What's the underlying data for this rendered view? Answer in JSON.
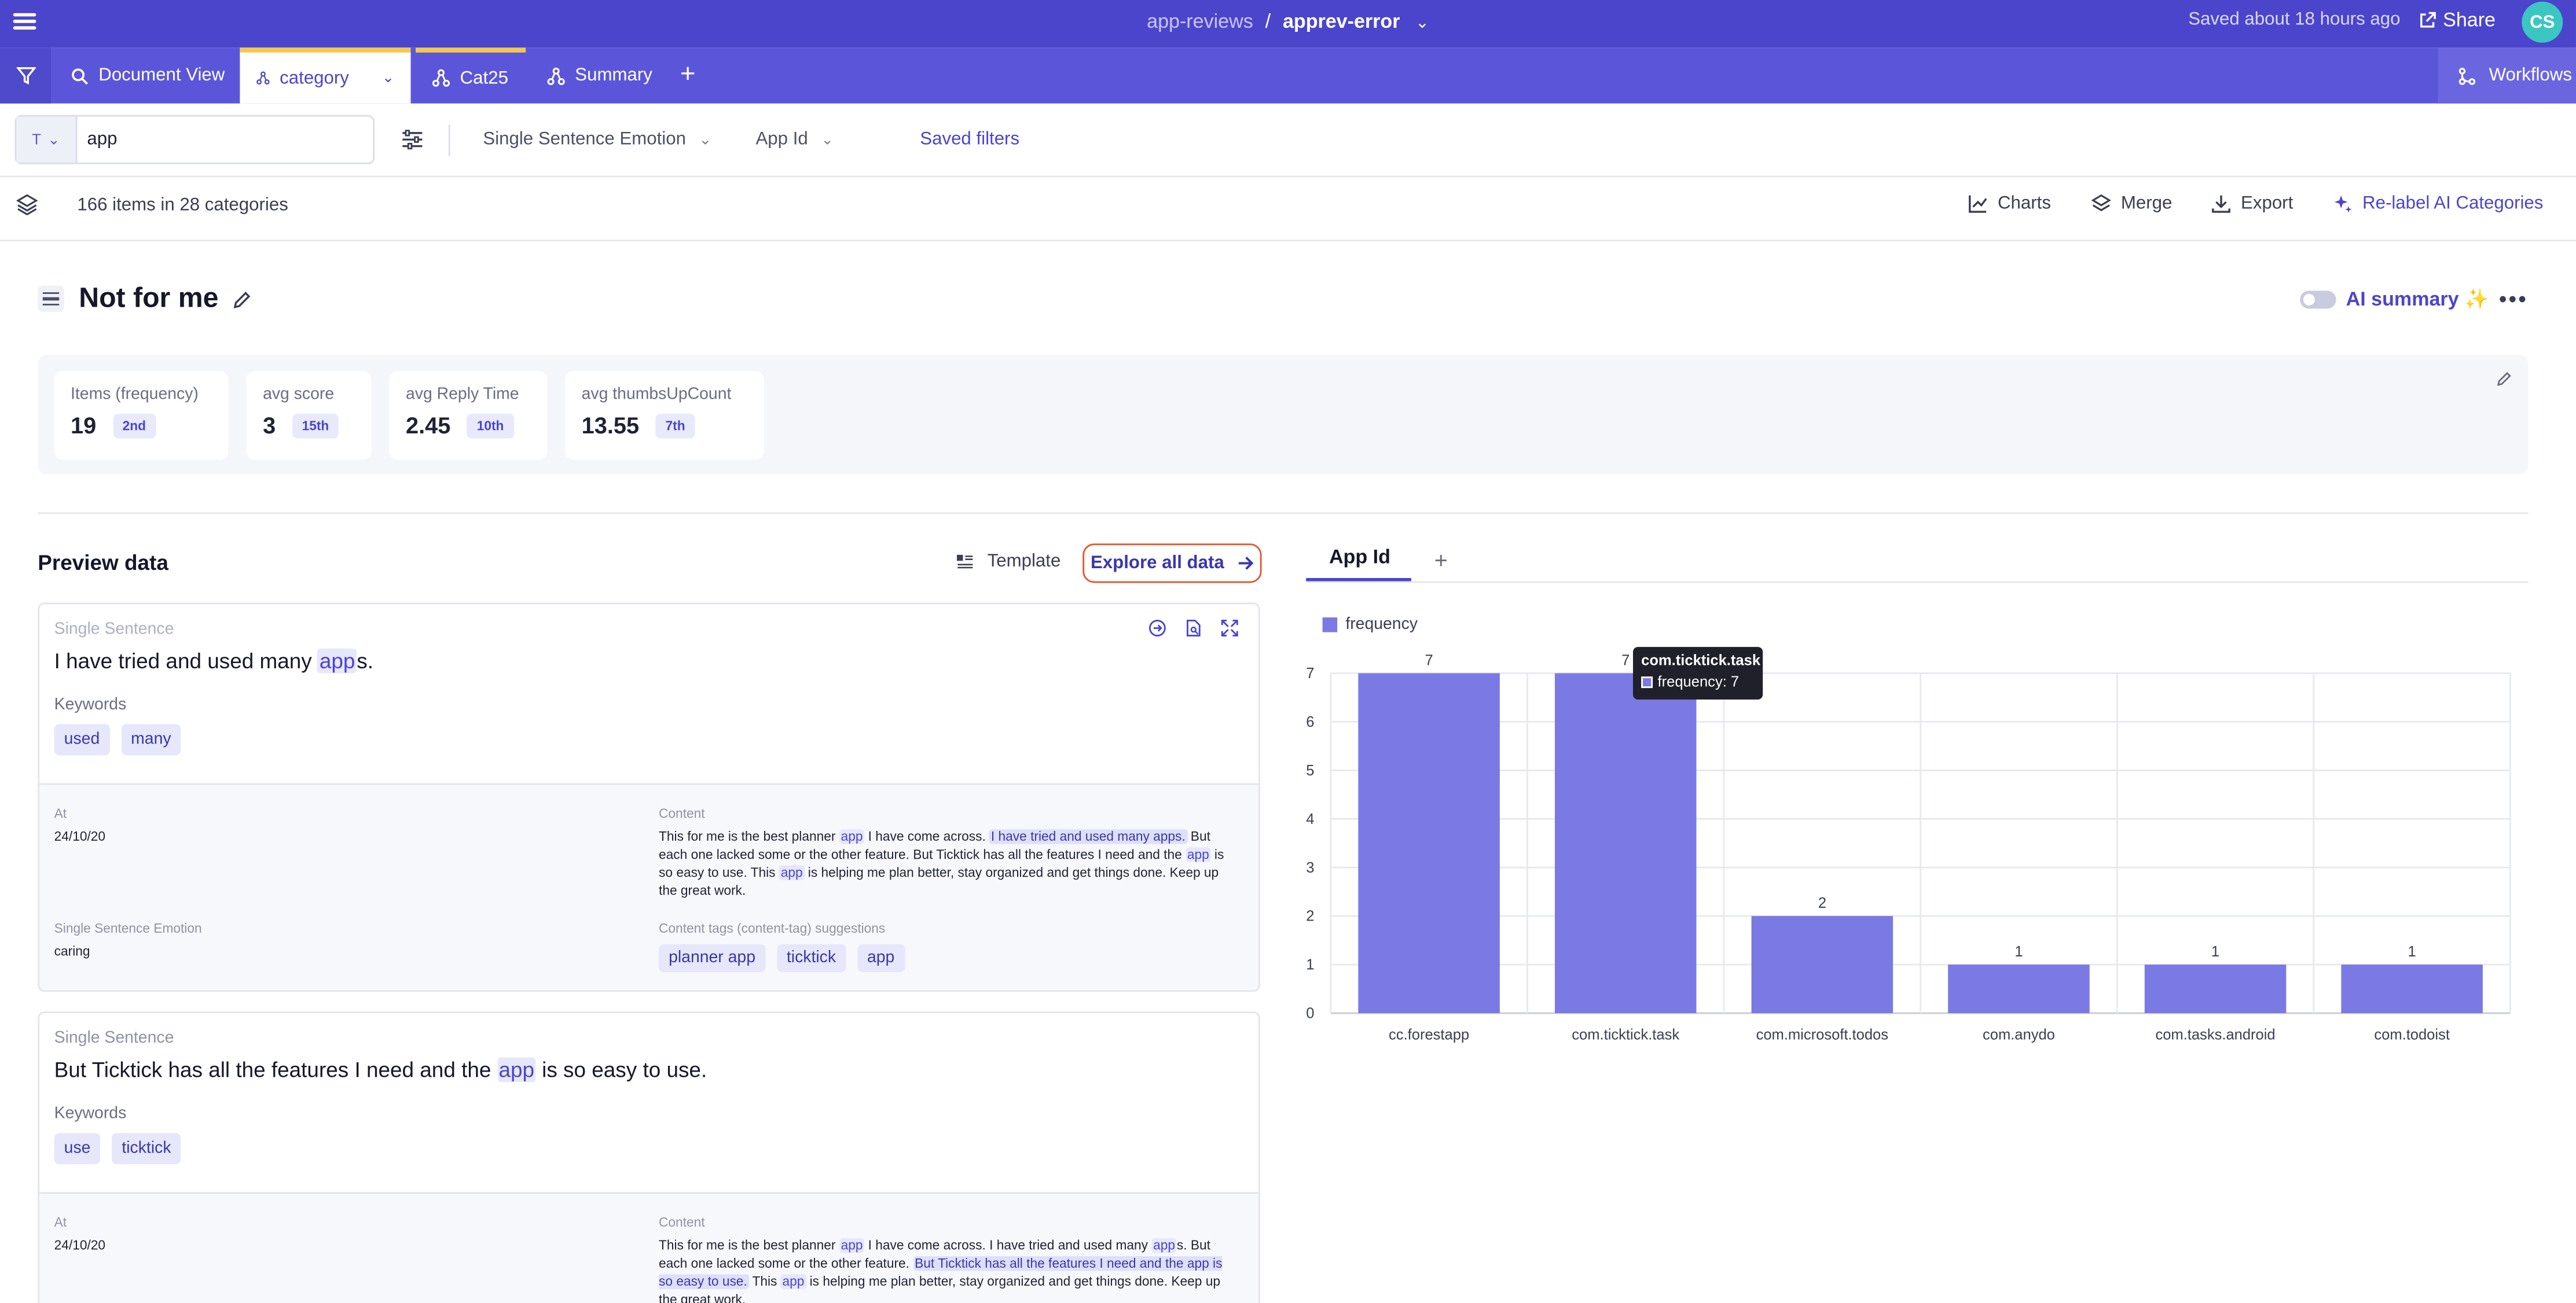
{
  "topbar": {
    "project": "app-reviews",
    "separator": "/",
    "document": "apprev-error",
    "saved": "Saved about 18 hours ago",
    "share": "Share",
    "avatar": "CS"
  },
  "tabs": [
    {
      "label": "Document View",
      "icon": "magnifier-icon"
    },
    {
      "label": "category",
      "icon": "graph-icon"
    },
    {
      "label": "Cat25",
      "icon": "graph-icon"
    },
    {
      "label": "Summary",
      "icon": "graph-icon"
    }
  ],
  "workflows": "Workflows",
  "filters": {
    "type": "T",
    "search_value": "app",
    "emotion": "Single Sentence Emotion",
    "app_id": "App Id",
    "saved": "Saved filters"
  },
  "info": {
    "count": "166 items in 28 categories",
    "charts": "Charts",
    "merge": "Merge",
    "export": "Export",
    "relabel": "Re-label AI Categories"
  },
  "category": {
    "title": "Not for me",
    "ai_summary": "AI summary",
    "ai_spark": "✨"
  },
  "stats": [
    {
      "label": "Items (frequency)",
      "value": "19",
      "rank": "2nd"
    },
    {
      "label": "avg score",
      "value": "3",
      "rank": "15th"
    },
    {
      "label": "avg Reply Time",
      "value": "2.45",
      "rank": "10th"
    },
    {
      "label": "avg thumbsUpCount",
      "value": "13.55",
      "rank": "7th"
    }
  ],
  "preview": {
    "title": "Preview data",
    "template": "Template",
    "explore": "Explore all data"
  },
  "cards": [
    {
      "sentence_label": "Single Sentence",
      "sentence_pre": "I have tried and used many ",
      "sentence_hl": "app",
      "sentence_post": "s.",
      "keywords_label": "Keywords",
      "keywords": [
        "used",
        "many"
      ],
      "at_label": "At",
      "at": "24/10/20",
      "content_label": "Content",
      "emotion_label": "Single Sentence Emotion",
      "emotion": "caring",
      "tags_label": "Content tags (content-tag) suggestions",
      "tags": [
        "planner app",
        "ticktick",
        "app"
      ],
      "content": {
        "p1": "This for me is the best planner ",
        "h1": "app",
        "p2": " I have come across. ",
        "h2": "I have tried and used many apps.",
        "p3": " But each one lacked some or the other feature. But Ticktick has all the features I need and the ",
        "h3": "app",
        "p4": " is so easy to use. This ",
        "h4": "app",
        "p5": " is helping me plan better, stay organized and get things done. Keep up the great work."
      }
    },
    {
      "sentence_label": "Single Sentence",
      "sentence_pre": "But Ticktick has all the features I need and the ",
      "sentence_hl": "app",
      "sentence_post": " is so easy to use.",
      "keywords_label": "Keywords",
      "keywords": [
        "use",
        "ticktick"
      ],
      "at_label": "At",
      "at": "24/10/20",
      "content_label": "Content",
      "content": {
        "p1": "This for me is the best planner ",
        "h1": "app",
        "p2": " I have come across. I have tried and used many ",
        "h2": "app",
        "p3": "s. But each one lacked some or the other feature. ",
        "h3": "But Ticktick has all the features I need and the app is so easy to use.",
        "p4": " This ",
        "h4": "app",
        "p5": " is helping me plan better, stay organized and get things done. Keep up the great work."
      }
    }
  ],
  "chart_tab": "App Id",
  "chart_data": {
    "type": "bar",
    "categories": [
      "cc.forestapp",
      "com.ticktick.task",
      "com.microsoft.todos",
      "com.anydo",
      "com.tasks.android",
      "com.todoist"
    ],
    "series": [
      {
        "name": "frequency",
        "values": [
          7,
          7,
          2,
          1,
          1,
          1
        ]
      }
    ],
    "ylim": [
      0,
      7
    ],
    "yticks": [
      0,
      1,
      2,
      3,
      4,
      5,
      6,
      7
    ],
    "grid": true,
    "legend": "top-left",
    "color": "#7b79e3",
    "tooltip": {
      "title": "com.ticktick.task",
      "text": "frequency: 7"
    }
  }
}
